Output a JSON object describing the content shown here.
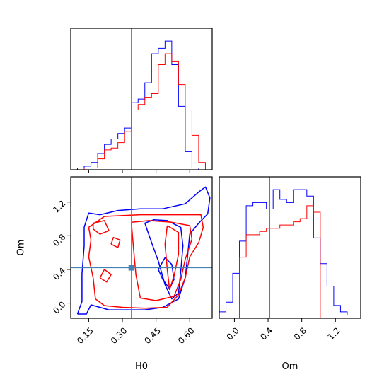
{
  "chart_data": {
    "type": "corner",
    "parameters": [
      "H0",
      "Om"
    ],
    "truths": {
      "H0": 0.34,
      "Om": 0.42
    },
    "truth_color": "#4682b4",
    "series": [
      {
        "color": "#0000ff"
      },
      {
        "color": "#ff0000"
      }
    ],
    "axes": {
      "H0": {
        "label": "H0",
        "range": [
          0.07,
          0.7
        ],
        "ticks": [
          0.15,
          0.3,
          0.45,
          0.6
        ],
        "tick_labels": [
          "0.15",
          "0.30",
          "0.45",
          "0.60"
        ]
      },
      "Om": {
        "label": "Om",
        "range": [
          -0.18,
          1.5
        ],
        "ticks": [
          0.0,
          0.4,
          0.8,
          1.2
        ],
        "tick_labels": [
          "0.0",
          "0.4",
          "0.8",
          "1.2"
        ]
      }
    },
    "hist_H0": {
      "bin_edges": [
        0.07,
        0.1,
        0.13,
        0.16,
        0.19,
        0.22,
        0.25,
        0.28,
        0.31,
        0.34,
        0.37,
        0.4,
        0.43,
        0.46,
        0.49,
        0.52,
        0.55,
        0.58,
        0.61,
        0.64,
        0.67,
        0.7
      ],
      "blue": [
        0,
        1,
        2,
        4,
        9,
        14,
        17,
        20,
        23,
        37,
        39,
        48,
        64,
        67,
        71,
        58,
        35,
        10,
        1,
        0,
        0
      ],
      "red": [
        0,
        0,
        1,
        1,
        6,
        11,
        12,
        15,
        21,
        33,
        36,
        40,
        42,
        58,
        64,
        60,
        47,
        33,
        19,
        4,
        0
      ]
    },
    "hist_Om": {
      "bin_edges": [
        -0.18,
        -0.1,
        -0.02,
        0.06,
        0.14,
        0.22,
        0.3,
        0.38,
        0.46,
        0.54,
        0.62,
        0.7,
        0.78,
        0.86,
        0.94,
        1.02,
        1.1,
        1.18,
        1.26,
        1.34,
        1.42,
        1.5
      ],
      "blue": [
        2,
        5,
        14,
        24,
        35,
        36,
        36,
        34,
        40,
        37,
        36,
        40,
        40,
        38,
        25,
        17,
        10,
        4,
        2,
        1,
        0
      ],
      "red": [
        0,
        0,
        0,
        19,
        26,
        26,
        27,
        28,
        28,
        29,
        29,
        30,
        31,
        35,
        33,
        0,
        0,
        0,
        0,
        0,
        0
      ]
    },
    "contours": {
      "blue": [
        [
          [
            0.1,
            -0.13
          ],
          [
            0.12,
            0.02
          ],
          [
            0.12,
            0.35
          ],
          [
            0.13,
            0.68
          ],
          [
            0.13,
            0.9
          ],
          [
            0.15,
            1.07
          ],
          [
            0.2,
            1.05
          ],
          [
            0.28,
            1.1
          ],
          [
            0.38,
            1.12
          ],
          [
            0.48,
            1.12
          ],
          [
            0.58,
            1.18
          ],
          [
            0.64,
            1.32
          ],
          [
            0.67,
            1.38
          ],
          [
            0.69,
            1.25
          ],
          [
            0.68,
            1.06
          ],
          [
            0.64,
            0.95
          ],
          [
            0.6,
            0.82
          ],
          [
            0.59,
            0.55
          ],
          [
            0.58,
            0.3
          ],
          [
            0.55,
            0.05
          ],
          [
            0.48,
            -0.05
          ],
          [
            0.4,
            -0.08
          ],
          [
            0.3,
            -0.08
          ],
          [
            0.24,
            -0.08
          ],
          [
            0.16,
            -0.02
          ],
          [
            0.14,
            -0.13
          ],
          [
            0.1,
            -0.13
          ]
        ],
        [
          [
            0.4,
            0.95
          ],
          [
            0.43,
            0.72
          ],
          [
            0.46,
            0.5
          ],
          [
            0.49,
            0.22
          ],
          [
            0.52,
            0.05
          ],
          [
            0.55,
            0.12
          ],
          [
            0.56,
            0.38
          ],
          [
            0.57,
            0.68
          ],
          [
            0.56,
            0.9
          ],
          [
            0.5,
            0.98
          ],
          [
            0.44,
            0.99
          ],
          [
            0.4,
            0.95
          ]
        ],
        [
          [
            0.46,
            0.4
          ],
          [
            0.48,
            0.28
          ],
          [
            0.51,
            0.17
          ],
          [
            0.53,
            0.28
          ],
          [
            0.52,
            0.46
          ],
          [
            0.49,
            0.54
          ],
          [
            0.46,
            0.4
          ]
        ]
      ],
      "red": [
        [
          [
            0.15,
            0.9
          ],
          [
            0.22,
            1.03
          ],
          [
            0.38,
            1.05
          ],
          [
            0.52,
            1.05
          ],
          [
            0.65,
            1.05
          ],
          [
            0.66,
            0.9
          ],
          [
            0.64,
            0.72
          ],
          [
            0.6,
            0.55
          ],
          [
            0.58,
            0.3
          ],
          [
            0.55,
            0.1
          ],
          [
            0.5,
            -0.05
          ],
          [
            0.4,
            -0.06
          ],
          [
            0.3,
            -0.05
          ],
          [
            0.22,
            -0.03
          ],
          [
            0.18,
            0.05
          ],
          [
            0.17,
            0.3
          ],
          [
            0.15,
            0.55
          ],
          [
            0.16,
            0.75
          ],
          [
            0.15,
            0.9
          ]
        ],
        [
          [
            0.34,
            0.96
          ],
          [
            0.42,
            0.98
          ],
          [
            0.52,
            0.96
          ],
          [
            0.6,
            0.92
          ],
          [
            0.61,
            0.76
          ],
          [
            0.58,
            0.52
          ],
          [
            0.56,
            0.28
          ],
          [
            0.53,
            0.08
          ],
          [
            0.45,
            0.03
          ],
          [
            0.38,
            0.06
          ],
          [
            0.36,
            0.34
          ],
          [
            0.35,
            0.64
          ],
          [
            0.34,
            0.96
          ]
        ],
        [
          [
            0.5,
            0.92
          ],
          [
            0.55,
            0.84
          ],
          [
            0.55,
            0.58
          ],
          [
            0.53,
            0.32
          ],
          [
            0.51,
            0.16
          ],
          [
            0.5,
            0.4
          ],
          [
            0.49,
            0.7
          ],
          [
            0.5,
            0.92
          ]
        ],
        [
          [
            0.17,
            0.95
          ],
          [
            0.22,
            0.98
          ],
          [
            0.24,
            0.86
          ],
          [
            0.2,
            0.82
          ],
          [
            0.17,
            0.88
          ],
          [
            0.17,
            0.95
          ]
        ],
        [
          [
            0.2,
            0.3
          ],
          [
            0.23,
            0.25
          ],
          [
            0.25,
            0.34
          ],
          [
            0.22,
            0.4
          ],
          [
            0.2,
            0.3
          ]
        ],
        [
          [
            0.25,
            0.7
          ],
          [
            0.28,
            0.66
          ],
          [
            0.29,
            0.75
          ],
          [
            0.26,
            0.78
          ],
          [
            0.25,
            0.7
          ]
        ]
      ]
    }
  }
}
